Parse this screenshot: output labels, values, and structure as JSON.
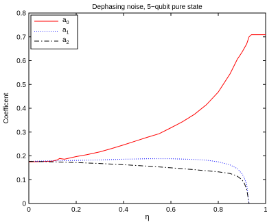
{
  "chart_data": {
    "type": "line",
    "title": "Dephasing noise, 5−qubit pure state",
    "xlabel": "η",
    "ylabel": "Coefficent",
    "xlim": [
      0,
      1
    ],
    "ylim": [
      0,
      0.8
    ],
    "xticks": [
      {
        "value": 0,
        "label": "0"
      },
      {
        "value": 0.2,
        "label": "0.2"
      },
      {
        "value": 0.4,
        "label": "0.4"
      },
      {
        "value": 0.6,
        "label": "0.6"
      },
      {
        "value": 0.8,
        "label": "0.8"
      },
      {
        "value": 1,
        "label": "1"
      }
    ],
    "yticks": [
      {
        "value": 0,
        "label": "0"
      },
      {
        "value": 0.1,
        "label": "0.1"
      },
      {
        "value": 0.2,
        "label": "0.2"
      },
      {
        "value": 0.3,
        "label": "0.3"
      },
      {
        "value": 0.4,
        "label": "0.4"
      },
      {
        "value": 0.5,
        "label": "0.5"
      },
      {
        "value": 0.6,
        "label": "0.6"
      },
      {
        "value": 0.7,
        "label": "0.7"
      },
      {
        "value": 0.8,
        "label": "0.8"
      }
    ],
    "grid": false,
    "legend_position": "top-left",
    "series": [
      {
        "name": "a",
        "sub": "0",
        "color": "#ff0000",
        "style": "solid",
        "x": [
          0,
          0.05,
          0.1,
          0.12,
          0.13,
          0.15,
          0.2,
          0.25,
          0.3,
          0.35,
          0.4,
          0.45,
          0.5,
          0.55,
          0.6,
          0.65,
          0.7,
          0.75,
          0.8,
          0.85,
          0.88,
          0.9,
          0.92,
          0.93,
          0.94,
          0.95,
          1.0
        ],
        "y": [
          0.175,
          0.176,
          0.178,
          0.183,
          0.189,
          0.186,
          0.197,
          0.206,
          0.217,
          0.231,
          0.246,
          0.262,
          0.278,
          0.293,
          0.318,
          0.344,
          0.375,
          0.415,
          0.468,
          0.545,
          0.605,
          0.635,
          0.67,
          0.7,
          0.709,
          0.709,
          0.709
        ]
      },
      {
        "name": "a",
        "sub": "1",
        "color": "#0000ff",
        "style": "dotted",
        "x": [
          0,
          0.1,
          0.2,
          0.3,
          0.4,
          0.5,
          0.6,
          0.7,
          0.75,
          0.8,
          0.85,
          0.88,
          0.9,
          0.91,
          0.92,
          0.93
        ],
        "y": [
          0.177,
          0.179,
          0.181,
          0.183,
          0.186,
          0.188,
          0.188,
          0.185,
          0.182,
          0.175,
          0.162,
          0.147,
          0.125,
          0.108,
          0.08,
          0.0
        ]
      },
      {
        "name": "a",
        "sub": "2",
        "color": "#000000",
        "style": "dashdot",
        "x": [
          0,
          0.1,
          0.2,
          0.3,
          0.4,
          0.5,
          0.6,
          0.7,
          0.8,
          0.85,
          0.88,
          0.9,
          0.91,
          0.92,
          0.93
        ],
        "y": [
          0.177,
          0.175,
          0.172,
          0.168,
          0.163,
          0.157,
          0.15,
          0.142,
          0.133,
          0.126,
          0.115,
          0.1,
          0.085,
          0.06,
          0.0
        ]
      }
    ]
  }
}
